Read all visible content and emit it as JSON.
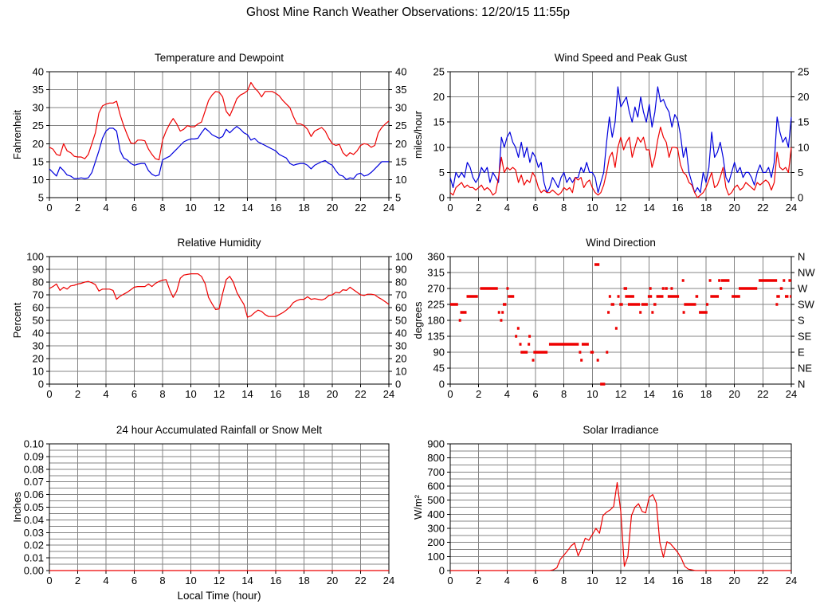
{
  "page_title": "Ghost Mine Ranch Weather Observations: 12/20/15 11:55p",
  "colors": {
    "red": "#ee0000",
    "blue": "#0000dd",
    "grid": "#848484",
    "axis": "#000000",
    "background": "#ffffff"
  },
  "x_axis": {
    "min": 0,
    "max": 24,
    "tick_step": 2,
    "bottom_label": "Local Time (hour)"
  },
  "chart_data": [
    {
      "type": "line",
      "title": "Temperature and Dewpoint",
      "ylabel": "Fahrenheit",
      "ylim": [
        5,
        40
      ],
      "ytick": 5,
      "ygrid": 5,
      "ydecimals": 0,
      "right_labels": "mirror",
      "xlabel": "",
      "x_step": 0.25,
      "series": [
        {
          "name": "temperature",
          "color": "red",
          "values": [
            19,
            18.5,
            17,
            16.7,
            20,
            18,
            17.5,
            16.5,
            16.3,
            16.3,
            15.8,
            17,
            20,
            23,
            28.5,
            30.5,
            31,
            31.3,
            31.3,
            31.8,
            28,
            25,
            22.5,
            20.2,
            20,
            21,
            21,
            20.8,
            18.5,
            17,
            15.8,
            15.5,
            21,
            23.5,
            25.5,
            27,
            25.5,
            23.5,
            24,
            25,
            24.7,
            24.7,
            25.5,
            26,
            29,
            32,
            33.5,
            34.5,
            34.3,
            33,
            29,
            27.7,
            30,
            32.5,
            33.5,
            34,
            34.7,
            37,
            35.5,
            34.5,
            33,
            34.5,
            34.5,
            34.5,
            34,
            33.3,
            32,
            31,
            30,
            27.5,
            25.5,
            25.5,
            25,
            24,
            22,
            23.5,
            24,
            24.5,
            23.5,
            21.5,
            20,
            19.5,
            19.8,
            17.5,
            16.5,
            17.5,
            17,
            18,
            19.5,
            20,
            19.8,
            19,
            19.5,
            23,
            24.5,
            25.5,
            26.3
          ]
        },
        {
          "name": "dewpoint",
          "color": "blue",
          "values": [
            13,
            12,
            11,
            13.5,
            12.5,
            11.3,
            11,
            10.3,
            10.3,
            10.5,
            10.3,
            10.5,
            12,
            15,
            18,
            21.5,
            23.5,
            24.3,
            24.3,
            23.5,
            18,
            16,
            15.5,
            14.5,
            14,
            14.3,
            14.5,
            14.5,
            12.5,
            11.5,
            11,
            11.3,
            15.5,
            16,
            16.5,
            17.5,
            18.5,
            19.5,
            20.5,
            21,
            21.3,
            21.3,
            21.5,
            23,
            24.3,
            23.5,
            22.5,
            22,
            21.5,
            22,
            24,
            23,
            24,
            24.8,
            24,
            23,
            22.5,
            21,
            21.5,
            20.5,
            20,
            19.5,
            19,
            18.5,
            18,
            17,
            16.5,
            16,
            14.5,
            14,
            14.3,
            14.5,
            14.5,
            14,
            13,
            14,
            14.5,
            15,
            15.3,
            14.5,
            14,
            12.5,
            11.3,
            11,
            10,
            10.5,
            10.3,
            11.5,
            11.8,
            11,
            11.3,
            12,
            13,
            14,
            15,
            15,
            15
          ]
        }
      ]
    },
    {
      "type": "line",
      "title": "Wind Speed and Peak Gust",
      "ylabel": "miles/hour",
      "ylim": [
        0,
        25
      ],
      "ytick": 5,
      "ygrid": 5,
      "ydecimals": 0,
      "right_labels": "mirror",
      "xlabel": "",
      "x_step": 0.2,
      "series": [
        {
          "name": "peak-gust",
          "color": "blue",
          "values": [
            4,
            2,
            5,
            4,
            5,
            4,
            7,
            6,
            4,
            3,
            4,
            6,
            5,
            6,
            3,
            5,
            4,
            3,
            12,
            10,
            12,
            13,
            11,
            10,
            8,
            11,
            8,
            10,
            7,
            9,
            8,
            6,
            7,
            3,
            1,
            2,
            4,
            3,
            2,
            4,
            5,
            3,
            4,
            3,
            4,
            4,
            6,
            5,
            7,
            5,
            5,
            4,
            1,
            3,
            5,
            11,
            16,
            12,
            15,
            22,
            18,
            19,
            20,
            17,
            15,
            18,
            16,
            20,
            17,
            15,
            18.5,
            14,
            17,
            22,
            19,
            19.5,
            18,
            17,
            14,
            16.5,
            15.5,
            12.5,
            8,
            10,
            5,
            3,
            1,
            2,
            1,
            5,
            3,
            6,
            13,
            8,
            9,
            11,
            8,
            4,
            3,
            5,
            7,
            5,
            6,
            4,
            5,
            5,
            4,
            2.5,
            5,
            6.5,
            5,
            5,
            6,
            4,
            7,
            16,
            13,
            11,
            12,
            10,
            16
          ]
        },
        {
          "name": "wind-speed",
          "color": "red",
          "values": [
            1,
            0.5,
            2,
            2.5,
            3,
            2,
            2.5,
            2,
            2,
            1.5,
            2,
            2.5,
            1.5,
            2,
            1.5,
            0.5,
            1,
            4,
            8,
            5,
            6,
            5.5,
            6,
            5.5,
            3,
            4.5,
            2.5,
            3.5,
            3,
            5,
            4,
            2,
            1,
            1.5,
            1,
            1,
            1.5,
            1,
            0.5,
            1,
            2,
            1.5,
            2,
            1,
            4,
            3.5,
            4,
            2,
            3,
            3.5,
            2,
            1,
            0.5,
            1,
            2.5,
            5,
            8,
            9,
            6,
            10,
            12,
            9.5,
            11,
            12,
            8,
            10,
            12,
            11,
            12,
            9.5,
            9.5,
            6,
            8,
            11.5,
            14,
            12,
            11,
            8,
            10,
            10,
            9.8,
            6.5,
            5,
            4.5,
            3,
            2.5,
            1,
            0,
            0.5,
            1,
            2,
            3.5,
            5,
            2,
            2.5,
            4,
            6,
            2,
            0.5,
            1,
            2,
            2.5,
            1.5,
            2,
            3,
            2.5,
            2,
            1.5,
            3,
            2.5,
            3,
            3.5,
            3,
            1.5,
            3,
            9,
            6,
            5.5,
            6,
            5,
            10
          ]
        }
      ]
    },
    {
      "type": "line",
      "title": "Relative Humidity",
      "ylabel": "Percent",
      "ylim": [
        0,
        100
      ],
      "ytick": 10,
      "ygrid": 10,
      "ydecimals": 0,
      "right_labels": "mirror",
      "xlabel": "",
      "x_step": 0.25,
      "series": [
        {
          "name": "humidity",
          "color": "red",
          "values": [
            75,
            76.5,
            78.5,
            73.5,
            76,
            74.5,
            77,
            77.5,
            78.5,
            79,
            80,
            80.5,
            79.5,
            78,
            73,
            74.5,
            74.5,
            74.5,
            73.5,
            66.5,
            69,
            70.5,
            72,
            74,
            76,
            76.5,
            76.5,
            76.5,
            78.5,
            76.5,
            79,
            80.5,
            81.5,
            82,
            74,
            68,
            73,
            83,
            85.5,
            86,
            86.5,
            86.5,
            86.5,
            84.5,
            79,
            68,
            63,
            58.5,
            59,
            71,
            82,
            84.5,
            80,
            72,
            67,
            62.5,
            52.5,
            53.5,
            56,
            58,
            57,
            54.5,
            53,
            53,
            53,
            54.5,
            56,
            58,
            60.5,
            64,
            65.5,
            66.5,
            66.5,
            68.5,
            66.5,
            67,
            66.5,
            66,
            67,
            69.5,
            70,
            72,
            71.5,
            74,
            73.5,
            76,
            74,
            72,
            70,
            69.5,
            70.5,
            70.5,
            70,
            68,
            66.5,
            64.5,
            62.5
          ]
        }
      ]
    },
    {
      "type": "segments",
      "title": "Wind Direction",
      "ylabel": "degrees",
      "ylim": [
        0,
        360
      ],
      "ytick": 45,
      "ygrid": 45,
      "ydecimals": 0,
      "right_labels": "compass",
      "compass_top_to_bottom": [
        "N",
        "NW",
        "W",
        "SW",
        "S",
        "SE",
        "E",
        "NE",
        "N"
      ],
      "xlabel": "",
      "series_name": "wind-direction",
      "series_color": "red",
      "segments": [
        [
          0.0,
          0.55,
          225
        ],
        [
          0.6,
          0.7,
          180
        ],
        [
          0.7,
          1.15,
          202.5
        ],
        [
          1.15,
          1.95,
          247.5
        ],
        [
          2.1,
          3.35,
          270
        ],
        [
          3.35,
          3.45,
          202.5
        ],
        [
          3.5,
          3.6,
          180
        ],
        [
          3.6,
          3.7,
          202.5
        ],
        [
          3.7,
          3.95,
          225
        ],
        [
          3.95,
          4.05,
          270
        ],
        [
          4.05,
          4.5,
          247.5
        ],
        [
          4.55,
          4.65,
          135
        ],
        [
          4.7,
          4.8,
          157.5
        ],
        [
          4.85,
          4.95,
          112.5
        ],
        [
          4.95,
          5.45,
          90
        ],
        [
          5.45,
          5.55,
          112.5
        ],
        [
          5.5,
          5.6,
          135
        ],
        [
          5.75,
          5.85,
          67.5
        ],
        [
          5.85,
          6.85,
          90
        ],
        [
          6.95,
          9.05,
          112.5
        ],
        [
          9.05,
          9.15,
          90
        ],
        [
          9.15,
          9.25,
          67.5
        ],
        [
          9.25,
          9.75,
          112.5
        ],
        [
          9.85,
          10.1,
          90
        ],
        [
          10.15,
          10.5,
          337.5
        ],
        [
          10.3,
          10.4,
          67.5
        ],
        [
          10.55,
          10.9,
          0
        ],
        [
          10.95,
          11.05,
          90
        ],
        [
          11.05,
          11.15,
          202.5
        ],
        [
          11.15,
          11.25,
          247.5
        ],
        [
          11.3,
          11.55,
          225
        ],
        [
          11.6,
          11.7,
          157.5
        ],
        [
          11.75,
          11.85,
          247.5
        ],
        [
          11.9,
          12.15,
          225
        ],
        [
          12.2,
          12.45,
          270
        ],
        [
          12.3,
          12.95,
          247.5
        ],
        [
          12.5,
          13.35,
          225
        ],
        [
          13.3,
          13.4,
          202.5
        ],
        [
          13.45,
          13.9,
          225
        ],
        [
          13.9,
          14.2,
          247.5
        ],
        [
          14.0,
          14.1,
          270
        ],
        [
          14.15,
          14.25,
          202.5
        ],
        [
          14.3,
          14.5,
          225
        ],
        [
          14.5,
          15.0,
          247.5
        ],
        [
          14.9,
          15.0,
          270
        ],
        [
          15.1,
          15.3,
          270
        ],
        [
          15.3,
          16.1,
          247.5
        ],
        [
          15.5,
          15.6,
          270
        ],
        [
          16.3,
          16.45,
          292.5
        ],
        [
          16.35,
          16.45,
          202.5
        ],
        [
          16.45,
          17.3,
          225
        ],
        [
          17.25,
          17.45,
          247.5
        ],
        [
          17.5,
          18.1,
          202.5
        ],
        [
          18.0,
          18.1,
          225
        ],
        [
          18.2,
          18.35,
          292.5
        ],
        [
          18.3,
          18.9,
          247.5
        ],
        [
          18.85,
          19.0,
          292.5
        ],
        [
          18.95,
          19.05,
          270
        ],
        [
          19.05,
          19.65,
          292.5
        ],
        [
          19.8,
          20.4,
          247.5
        ],
        [
          20.3,
          21.6,
          270
        ],
        [
          21.7,
          23.0,
          292.5
        ],
        [
          22.9,
          23.0,
          225
        ],
        [
          22.95,
          23.2,
          247.5
        ],
        [
          23.2,
          23.4,
          270
        ],
        [
          23.4,
          23.5,
          292.5
        ],
        [
          23.55,
          23.8,
          247.5
        ],
        [
          23.8,
          24.0,
          292.5
        ],
        [
          23.9,
          24.0,
          247.5
        ]
      ]
    },
    {
      "type": "line",
      "title": "24 hour Accumulated Rainfall or Snow Melt",
      "ylabel": "Inches",
      "ylim": [
        0,
        0.1
      ],
      "ytick": 0.01,
      "ygrid": 0.005,
      "ydecimals": 2,
      "right_labels": "none",
      "xlabel": "Local Time (hour)",
      "x_step": 24,
      "series": [
        {
          "name": "rainfall",
          "color": "red",
          "values": [
            0,
            0
          ]
        }
      ]
    },
    {
      "type": "line",
      "title": "Solar Irradiance",
      "ylabel": "W/m²",
      "ylim": [
        0,
        900
      ],
      "ytick": 100,
      "ygrid": 50,
      "ydecimals": 0,
      "right_labels": "none",
      "xlabel": "",
      "x_step": 0.25,
      "series": [
        {
          "name": "solar",
          "color": "red",
          "values": [
            0,
            0,
            0,
            0,
            0,
            0,
            0,
            0,
            0,
            0,
            0,
            0,
            0,
            0,
            0,
            0,
            0,
            0,
            0,
            0,
            0,
            0,
            0,
            0,
            0,
            0,
            0,
            0,
            0,
            5,
            20,
            80,
            110,
            140,
            175,
            195,
            105,
            160,
            230,
            215,
            255,
            300,
            265,
            390,
            415,
            430,
            455,
            625,
            420,
            30,
            100,
            390,
            450,
            475,
            420,
            410,
            520,
            540,
            480,
            200,
            95,
            205,
            190,
            160,
            130,
            90,
            30,
            10,
            5,
            0,
            0,
            0,
            0,
            0,
            0,
            0,
            0,
            0,
            0,
            0,
            0,
            0,
            0,
            0,
            0,
            0,
            0,
            0,
            0,
            0,
            0,
            0,
            0,
            0,
            0,
            0,
            0
          ]
        }
      ]
    }
  ]
}
